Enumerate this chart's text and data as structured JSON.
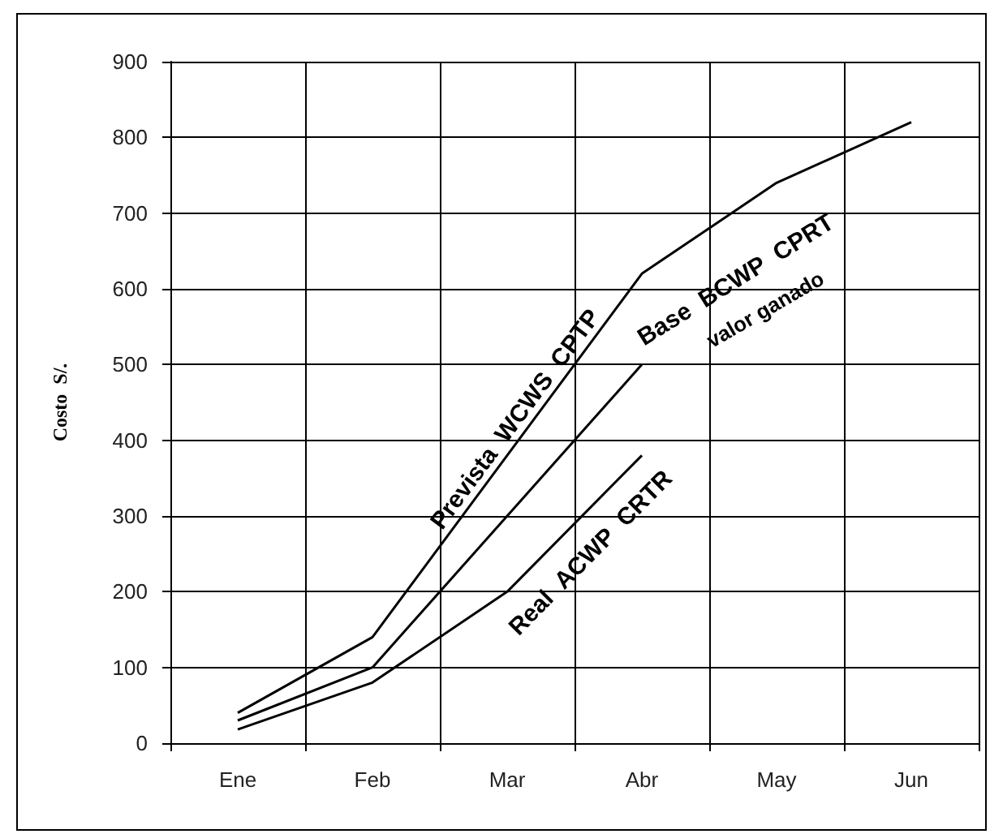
{
  "chart_data": {
    "type": "line",
    "ylabel": "Costo  S/.",
    "categories": [
      "Ene",
      "Feb",
      "Mar",
      "Abr",
      "May",
      "Jun"
    ],
    "series": [
      {
        "name": "Prevista  WCWS  CPTP",
        "color": "#000000",
        "values": [
          40,
          140,
          380,
          620,
          740,
          820
        ]
      },
      {
        "name": "Base  BCWP  CPRT",
        "color": "#000000",
        "values": [
          30,
          100,
          300,
          500,
          null,
          null
        ]
      },
      {
        "name": "Real  ACWP  CRTR",
        "color": "#000000",
        "values": [
          18,
          80,
          200,
          380,
          null,
          null
        ]
      }
    ],
    "annotations": [
      "valor ganado"
    ],
    "ylim": [
      0,
      900
    ],
    "yticks": [
      0,
      100,
      200,
      300,
      400,
      500,
      600,
      700,
      800,
      900
    ],
    "grid": true,
    "legend": false,
    "marker": "none",
    "line_style": "solid"
  }
}
